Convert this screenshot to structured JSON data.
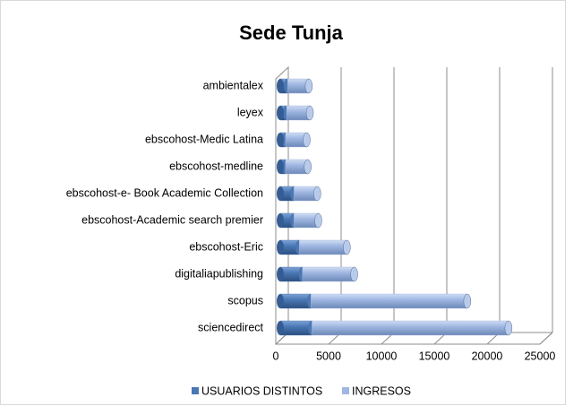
{
  "chart_data": {
    "type": "bar",
    "orientation": "horizontal",
    "stacked": true,
    "title": "Sede Tunja",
    "categories": [
      "ambientalex",
      "leyex",
      "ebscohost-Medic Latina",
      "ebscohost-medline",
      "ebscohost-e- Book Academic Collection",
      "ebscohost-Academic search premier",
      "ebscohost-Eric",
      "digitaliapublishing",
      "scopus",
      "sciencedirect"
    ],
    "series": [
      {
        "name": "USUARIOS DISTINTOS",
        "color": "#4a78b5",
        "values": [
          700,
          600,
          500,
          500,
          1300,
          1300,
          1800,
          2100,
          2900,
          3000
        ]
      },
      {
        "name": "INGRESOS",
        "color": "#9fb7e2",
        "values": [
          2000,
          2200,
          2000,
          2100,
          2200,
          2300,
          4500,
          4900,
          14800,
          18600
        ]
      }
    ],
    "xlim": [
      0,
      25000
    ],
    "xticks": [
      0,
      5000,
      10000,
      15000,
      20000,
      25000
    ],
    "grid": true,
    "legend": "bottom"
  }
}
